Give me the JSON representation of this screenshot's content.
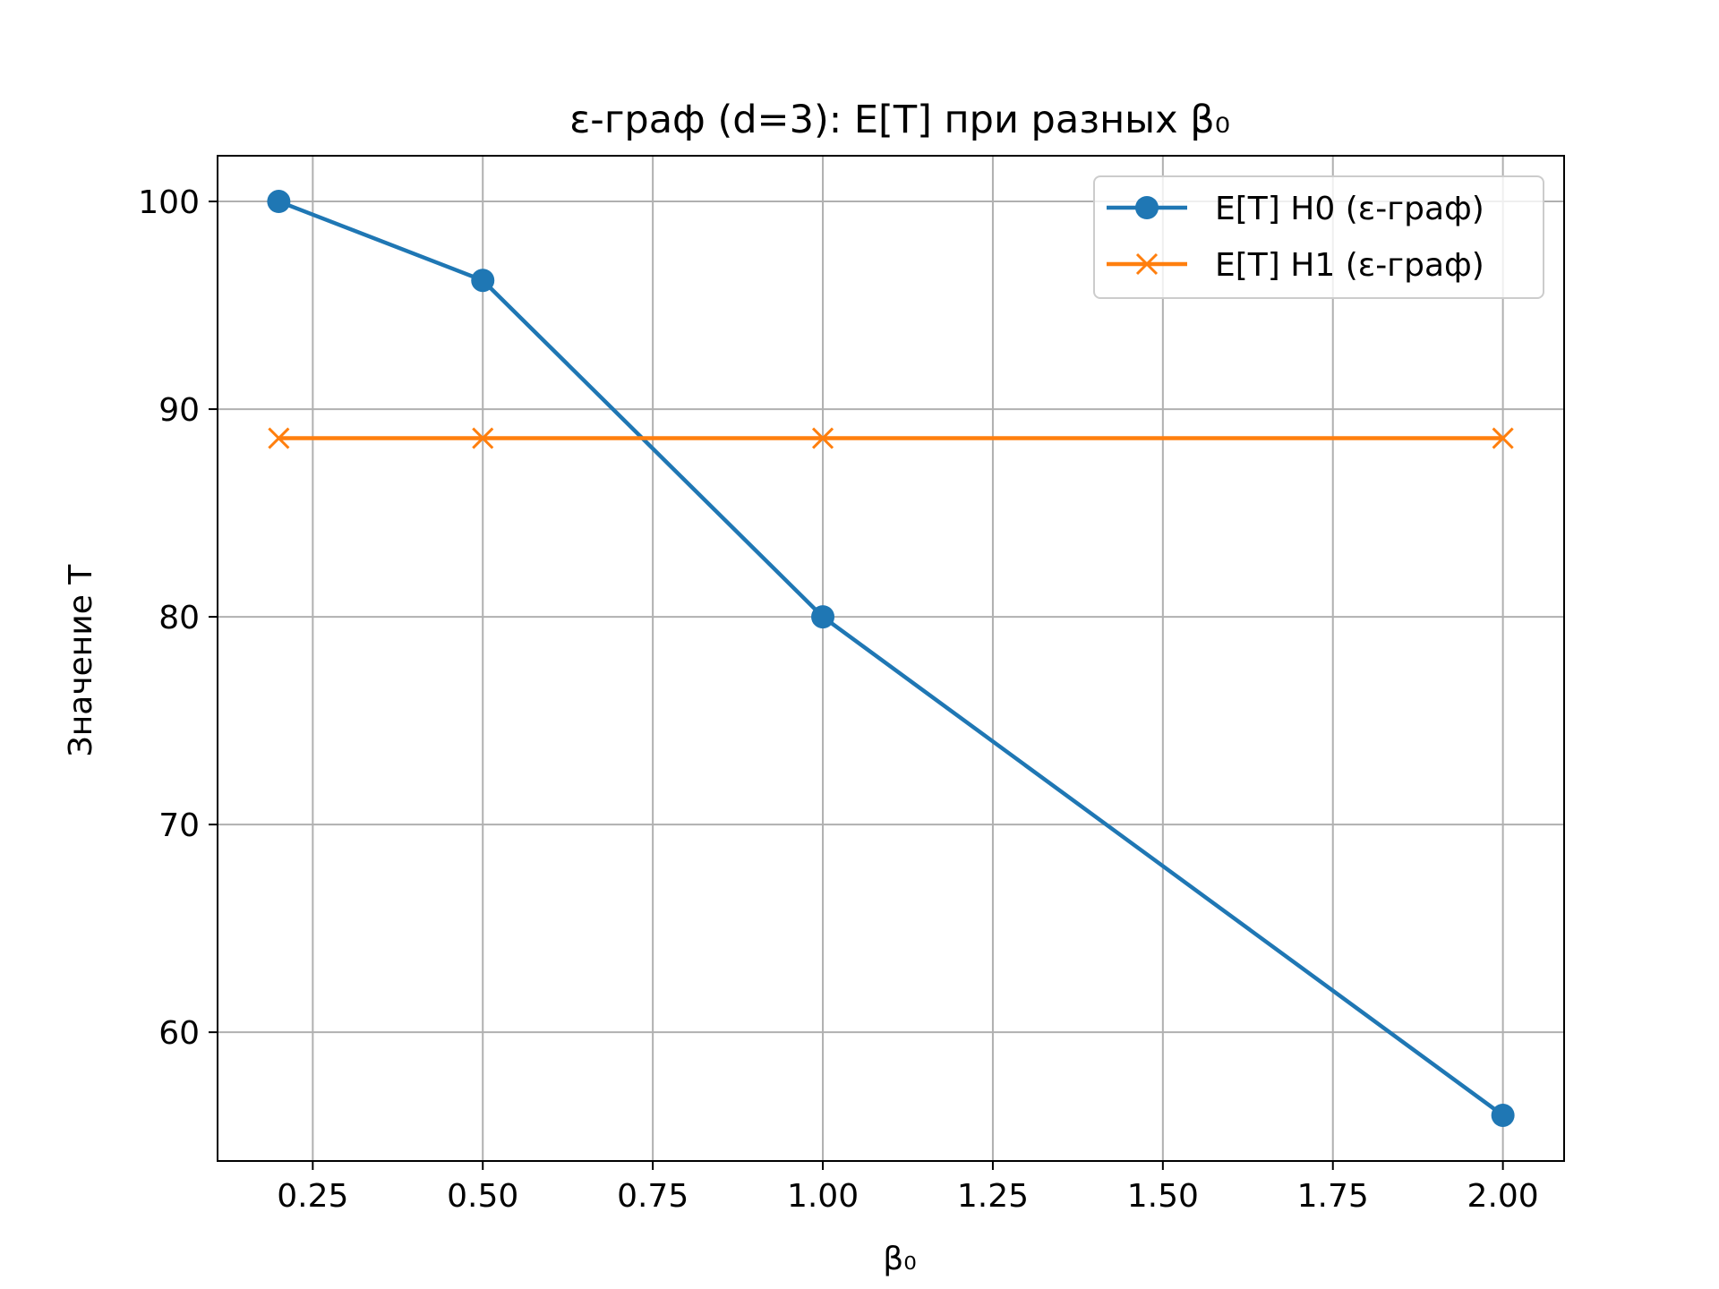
{
  "chart_data": {
    "type": "line",
    "title": "ε-граф (d=3): E[T] при разных β₀",
    "xlabel": "β₀",
    "ylabel": "Значение T",
    "x": [
      0.2,
      0.5,
      1.0,
      2.0
    ],
    "xlim": [
      0.11,
      2.09
    ],
    "ylim": [
      53.8,
      102.2
    ],
    "xticks": [
      "0.25",
      "0.50",
      "0.75",
      "1.00",
      "1.25",
      "1.50",
      "1.75",
      "2.00"
    ],
    "yticks": [
      "60",
      "70",
      "80",
      "90",
      "100"
    ],
    "grid": true,
    "legend_position": "upper right",
    "series": [
      {
        "name": "E[T] H0 (ε-граф)",
        "values": [
          100.0,
          96.2,
          80.0,
          56.0
        ],
        "color": "#1f77b4",
        "marker": "circle"
      },
      {
        "name": "E[T] H1 (ε-граф)",
        "values": [
          88.6,
          88.6,
          88.6,
          88.6
        ],
        "color": "#ff7f0e",
        "marker": "x"
      }
    ]
  }
}
